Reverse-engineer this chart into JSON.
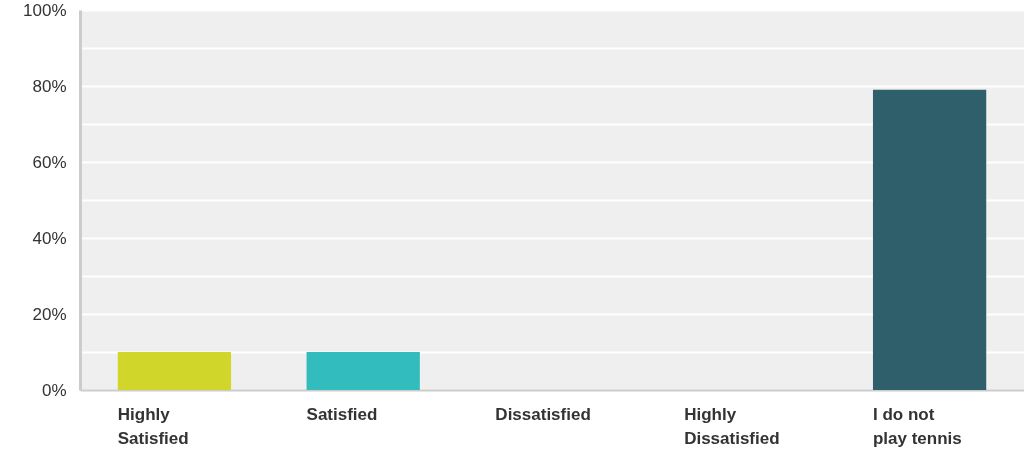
{
  "chart_data": {
    "type": "bar",
    "categories": [
      "Highly Satisfied",
      "Satisfied",
      "Dissatisfied",
      "Highly Dissatisfied",
      "I do not play tennis"
    ],
    "values": [
      10,
      10,
      0,
      0,
      79
    ],
    "colors": [
      "#d0d62a",
      "#33bcbd",
      null,
      null,
      "#2e5f6b"
    ],
    "ylim": [
      0,
      100
    ],
    "yticks": [
      {
        "value": 0,
        "label": "0%"
      },
      {
        "value": 10,
        "label": null
      },
      {
        "value": 20,
        "label": "20%"
      },
      {
        "value": 30,
        "label": null
      },
      {
        "value": 40,
        "label": "40%"
      },
      {
        "value": 50,
        "label": null
      },
      {
        "value": 60,
        "label": "60%"
      },
      {
        "value": 70,
        "label": null
      },
      {
        "value": 80,
        "label": "80%"
      },
      {
        "value": 90,
        "label": null
      },
      {
        "value": 100,
        "label": "100%"
      }
    ],
    "grid": true
  }
}
